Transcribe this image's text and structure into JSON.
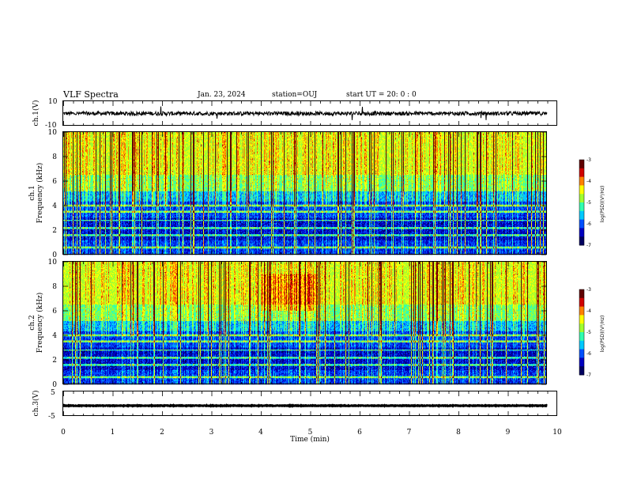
{
  "header": {
    "title": "VLF Spectra",
    "date": "Jan. 23, 2024",
    "station": "station=OUJ",
    "start": "start UT =  20: 0  : 0"
  },
  "colors": {
    "colormap": [
      "#000060",
      "#0000c0",
      "#0050ff",
      "#00c8ff",
      "#30ffb0",
      "#a0ff30",
      "#ffff00",
      "#ff8000",
      "#d00000",
      "#600000"
    ],
    "waveform": "#000000"
  },
  "chart_data": [
    {
      "type": "line",
      "panel": "ch1-waveform",
      "ylabel": "ch.1(V)",
      "ylim": [
        -10,
        10
      ],
      "yticks": [
        "10",
        "-10"
      ],
      "xlim": [
        0,
        10
      ],
      "baseline": 0
    },
    {
      "type": "heatmap",
      "panel": "ch1-spectrogram",
      "ylabel_line1": "ch.1",
      "ylabel_line2": "Frequency (kHz)",
      "ylim": [
        0,
        10
      ],
      "yticks": [
        "0",
        "2",
        "4",
        "6",
        "8",
        "10"
      ],
      "xlim": [
        0,
        10
      ],
      "colorbar": {
        "label": "log(PSD)(V²/Hz)",
        "range": [
          -7,
          -3
        ],
        "ticks": [
          "-3",
          "-4",
          "-5",
          "-6",
          "-7"
        ]
      }
    },
    {
      "type": "heatmap",
      "panel": "ch2-spectrogram",
      "ylabel_line1": "ch.2",
      "ylabel_line2": "Frequency (kHz)",
      "ylim": [
        0,
        10
      ],
      "yticks": [
        "0",
        "2",
        "4",
        "6",
        "8",
        "10"
      ],
      "xlim": [
        0,
        10
      ],
      "colorbar": {
        "label": "log(PSD)(V²/Hz)",
        "range": [
          -7,
          -3
        ],
        "ticks": [
          "-3",
          "-4",
          "-5",
          "-6",
          "-7"
        ]
      }
    },
    {
      "type": "line",
      "panel": "ch3-waveform",
      "ylabel": "ch.3(V)",
      "ylim": [
        -5,
        5
      ],
      "yticks": [
        "5",
        "-5"
      ],
      "xlim": [
        0,
        10
      ],
      "baseline": -0.8
    }
  ],
  "xaxis": {
    "label": "Time (min)",
    "ticks": [
      "0",
      "1",
      "2",
      "3",
      "4",
      "5",
      "6",
      "7",
      "8",
      "9",
      "10"
    ]
  }
}
